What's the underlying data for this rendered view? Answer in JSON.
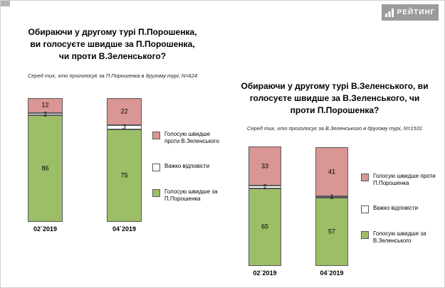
{
  "logo": {
    "text": "РЕЙТИНГ"
  },
  "chart_data": [
    {
      "type": "bar",
      "stacked": true,
      "title": "Обираючи у другому турі П.Порошенка,\nви голосуєте швидше за П.Порошенка,\nчи проти В.Зеленського?",
      "subtitle": "Серед тих, хто проголосує за П.Порошенка в другому турі, N=624",
      "categories": [
        "02`2019",
        "04`2019"
      ],
      "series": [
        {
          "name": "Голосую швидше за П.Порошенка",
          "color": "#9cbe66",
          "values": [
            86,
            75
          ]
        },
        {
          "name": "Важко відповісти",
          "color": "#ffffff",
          "values": [
            2,
            3
          ]
        },
        {
          "name": "Голосую швидше проти В.Зеленського",
          "color": "#d99694",
          "values": [
            12,
            22
          ]
        }
      ],
      "legend_position": "right",
      "ylim": [
        0,
        100
      ],
      "grid": false
    },
    {
      "type": "bar",
      "stacked": true,
      "title": "Обираючи у другому турі В.Зеленського, ви\nголосуєте швидше за В.Зеленського, чи\nпроти П.Порошенка?",
      "subtitle": "Серед тих, хто проголосує за В.Зеленського в другому турі, N=1531",
      "categories": [
        "02`2019",
        "04`2019"
      ],
      "series": [
        {
          "name": "Голосую швидше за В.Зеленського",
          "color": "#9cbe66",
          "values": [
            65,
            57
          ]
        },
        {
          "name": "Важко відповісти",
          "color": "#ffffff",
          "values": [
            2,
            1
          ]
        },
        {
          "name": "Голосую швидше проти П.Порошенка",
          "color": "#d99694",
          "values": [
            33,
            41
          ]
        }
      ],
      "legend_position": "right",
      "ylim": [
        0,
        100
      ],
      "grid": false
    }
  ],
  "colors": {
    "green": "#9cbe66",
    "pink": "#d99694",
    "neutral": "#ffffff",
    "border": "#595959",
    "logo_bg": "#9b9b9b"
  }
}
